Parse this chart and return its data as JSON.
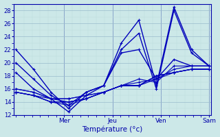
{
  "xlabel": "Température (°c)",
  "background_color": "#cce8e8",
  "line_color": "#0000bb",
  "grid_major_color": "#99bbcc",
  "grid_minor_color": "#bbdddd",
  "axis_color": "#0000aa",
  "ylim": [
    12,
    29
  ],
  "yticks": [
    12,
    14,
    16,
    18,
    20,
    22,
    24,
    26,
    28
  ],
  "day_labels": [
    "Mer",
    "Jeu",
    "Ven",
    "Sam"
  ],
  "day_positions": [
    0.25,
    0.5,
    0.75,
    1.0
  ],
  "series": [
    [
      22.0,
      19.0,
      15.5,
      13.0,
      15.5,
      16.5,
      23.0,
      26.5,
      16.5,
      28.5,
      22.0,
      19.5
    ],
    [
      18.5,
      16.0,
      14.5,
      12.5,
      15.0,
      16.5,
      22.0,
      24.5,
      16.0,
      28.0,
      21.5,
      19.5
    ],
    [
      20.0,
      17.5,
      15.0,
      13.5,
      15.5,
      16.5,
      21.5,
      22.0,
      17.5,
      20.5,
      19.5,
      19.5
    ],
    [
      16.0,
      15.5,
      14.5,
      14.5,
      15.0,
      15.5,
      16.5,
      17.5,
      17.0,
      19.5,
      19.5,
      19.5
    ],
    [
      16.0,
      15.5,
      14.5,
      14.5,
      15.0,
      15.5,
      16.5,
      17.0,
      17.5,
      19.0,
      19.5,
      19.5
    ],
    [
      15.5,
      15.0,
      14.0,
      14.0,
      14.5,
      15.5,
      16.5,
      16.5,
      17.5,
      18.5,
      19.0,
      19.0
    ],
    [
      15.5,
      15.0,
      14.5,
      14.0,
      14.5,
      15.5,
      16.5,
      16.5,
      18.0,
      18.5,
      19.0,
      19.0
    ],
    [
      15.5,
      15.0,
      14.0,
      14.0,
      14.5,
      15.5,
      16.5,
      16.5,
      18.0,
      18.5,
      19.0,
      19.0
    ],
    [
      15.5,
      15.0,
      14.0,
      13.5,
      14.5,
      15.5,
      16.5,
      16.5,
      18.0,
      18.5,
      19.0,
      19.0
    ]
  ],
  "xlim": [
    -0.01,
    1.01
  ]
}
